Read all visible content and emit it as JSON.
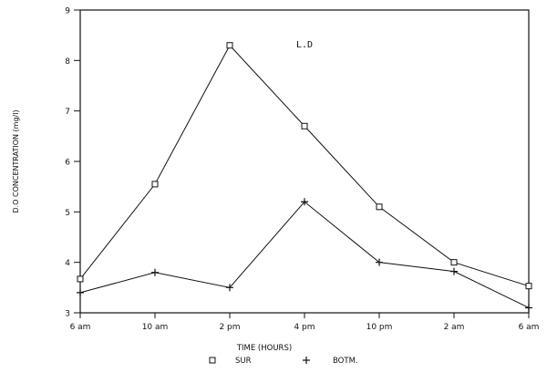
{
  "chart_data": {
    "type": "line",
    "title": "L.D",
    "xlabel": "TIME (HOURS)",
    "ylabel": "D.O CONCENTRATION (mg/l)",
    "categories": [
      "6 am",
      "10 am",
      "2 pm",
      "4 pm",
      "10 pm",
      "2 am",
      "6 am"
    ],
    "ylim": [
      3,
      9
    ],
    "yticks": [
      "3",
      "4",
      "5",
      "6",
      "7",
      "8",
      "9"
    ],
    "grid": false,
    "legend_position": "bottom",
    "series": [
      {
        "name": "SUR",
        "marker": "square",
        "values": [
          3.67,
          5.55,
          8.3,
          6.7,
          5.1,
          4.0,
          3.53
        ]
      },
      {
        "name": "BOTM.",
        "marker": "plus",
        "values": [
          3.4,
          3.8,
          3.5,
          5.2,
          4.0,
          3.82,
          3.1
        ]
      }
    ],
    "color": "#111111"
  }
}
